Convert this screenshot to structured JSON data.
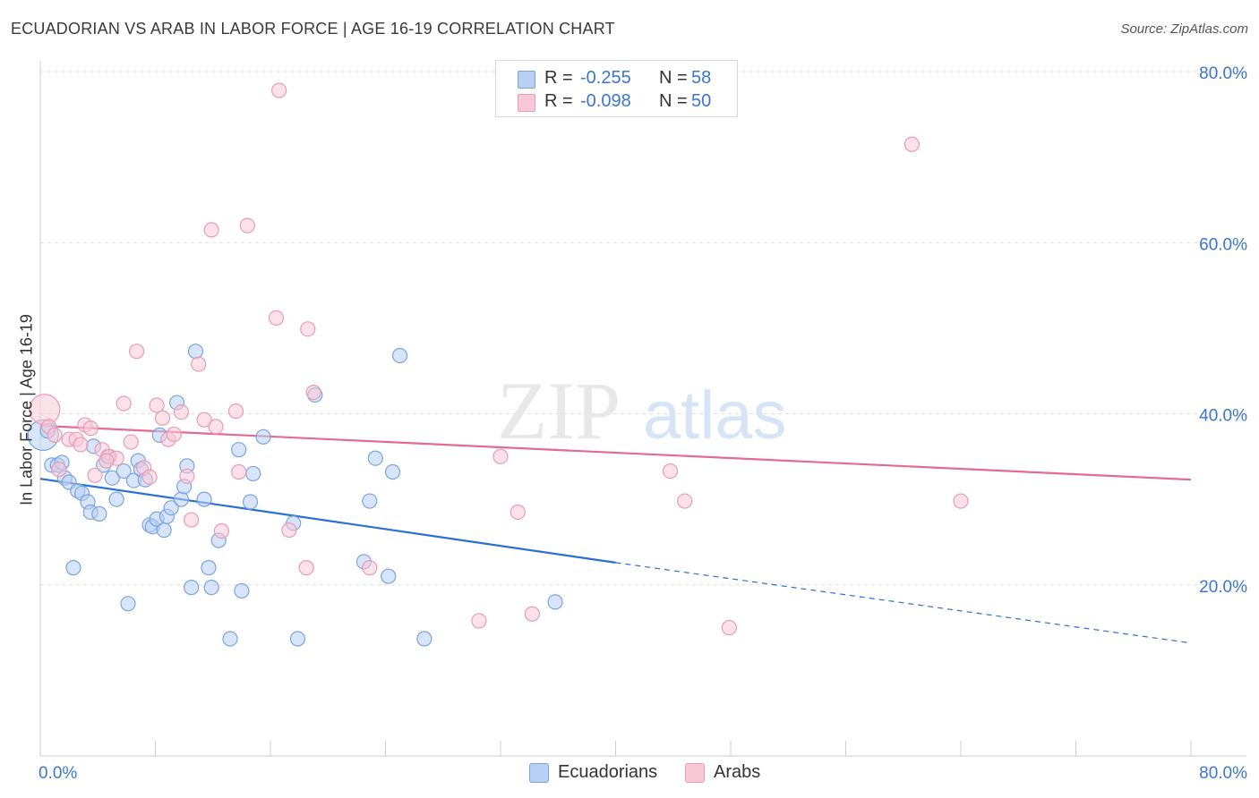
{
  "header": {
    "title": "ECUADORIAN VS ARAB IN LABOR FORCE | AGE 16-19 CORRELATION CHART",
    "source": "Source: ZipAtlas.com"
  },
  "legend": {
    "rows": [
      {
        "r_label": "R =",
        "r_value": "-0.255",
        "n_label": "N =",
        "n_value": "58"
      },
      {
        "r_label": "R =",
        "r_value": "-0.098",
        "n_label": "N =",
        "n_value": "50"
      }
    ]
  },
  "bottom_legend": [
    "Ecuadorians",
    "Arabs"
  ],
  "watermark": {
    "zip": "ZIP",
    "atlas": "atlas"
  },
  "colors": {
    "ecuadorian_fill": "#b8d0f4",
    "ecuadorian_stroke": "#7aa3df",
    "ecuadorian_line": "#2a6fd6",
    "arab_fill": "#f8c8d6",
    "arab_stroke": "#eb9ab4",
    "arab_line": "#e56a93",
    "tick_label": "#3a76d0",
    "grid": "#dcdcdc"
  },
  "chart_data": {
    "type": "scatter",
    "title": "ECUADORIAN VS ARAB IN LABOR FORCE | AGE 16-19 CORRELATION CHART",
    "xlabel": "",
    "ylabel": "In Labor Force | Age 16-19",
    "xlim": [
      0,
      80
    ],
    "ylim": [
      0,
      80
    ],
    "x_tick_labels": [
      "0.0%",
      "80.0%"
    ],
    "y_tick_labels": [
      "20.0%",
      "40.0%",
      "60.0%",
      "80.0%"
    ],
    "y_ticks": [
      20,
      40,
      60,
      80
    ],
    "grid": "horizontal dashed",
    "legend_position": "top-center",
    "series": [
      {
        "name": "Ecuadorians",
        "r": -0.255,
        "n": 58,
        "points": [
          [
            0.2,
            37.5
          ],
          [
            0.5,
            38
          ],
          [
            0.8,
            34
          ],
          [
            1.2,
            34
          ],
          [
            1.5,
            34.3
          ],
          [
            1.7,
            32.5
          ],
          [
            2,
            32
          ],
          [
            2.3,
            22
          ],
          [
            2.6,
            31
          ],
          [
            2.9,
            30.7
          ],
          [
            3.3,
            29.7
          ],
          [
            3.5,
            28.5
          ],
          [
            4.1,
            28.3
          ],
          [
            3.7,
            36.2
          ],
          [
            4.4,
            34
          ],
          [
            4.7,
            35
          ],
          [
            5,
            32.5
          ],
          [
            5.3,
            30
          ],
          [
            5.8,
            33.3
          ],
          [
            6.1,
            17.8
          ],
          [
            6.5,
            32.2
          ],
          [
            6.8,
            34.5
          ],
          [
            7,
            33.5
          ],
          [
            7.3,
            32.3
          ],
          [
            7.6,
            27
          ],
          [
            7.8,
            26.8
          ],
          [
            8.1,
            27.7
          ],
          [
            8.3,
            37.5
          ],
          [
            8.6,
            26.4
          ],
          [
            8.8,
            28
          ],
          [
            9.1,
            29
          ],
          [
            9.5,
            41.3
          ],
          [
            9.8,
            30
          ],
          [
            10,
            31.5
          ],
          [
            10.2,
            33.9
          ],
          [
            10.5,
            19.7
          ],
          [
            10.8,
            47.3
          ],
          [
            11.4,
            30
          ],
          [
            11.7,
            22
          ],
          [
            11.9,
            19.7
          ],
          [
            12.4,
            25.2
          ],
          [
            13.2,
            13.7
          ],
          [
            13.8,
            35.8
          ],
          [
            14,
            19.3
          ],
          [
            14.6,
            29.7
          ],
          [
            14.8,
            33
          ],
          [
            15.5,
            37.3
          ],
          [
            17.6,
            27.2
          ],
          [
            17.9,
            13.7
          ],
          [
            19.1,
            42.2
          ],
          [
            22.5,
            22.7
          ],
          [
            22.9,
            29.8
          ],
          [
            23.3,
            34.8
          ],
          [
            24.2,
            21
          ],
          [
            24.5,
            33.2
          ],
          [
            25,
            46.8
          ],
          [
            26.7,
            13.7
          ],
          [
            35.8,
            18
          ]
        ],
        "sizes": {
          "0.2,37.5": "large"
        },
        "trend": {
          "x": [
            0,
            40
          ],
          "y": [
            32.4,
            22.6
          ],
          "dashed_extension": {
            "x": [
              40,
              80
            ],
            "y": [
              22.6,
              13.2
            ]
          }
        }
      },
      {
        "name": "Arabs",
        "r": -0.098,
        "n": 50,
        "points": [
          [
            0.3,
            40.5
          ],
          [
            0.6,
            38.5
          ],
          [
            1,
            37.5
          ],
          [
            1.3,
            33.5
          ],
          [
            2,
            37
          ],
          [
            2.5,
            37
          ],
          [
            2.8,
            36.4
          ],
          [
            3.1,
            38.7
          ],
          [
            3.5,
            38.3
          ],
          [
            3.8,
            32.8
          ],
          [
            4.3,
            35.8
          ],
          [
            4.8,
            35
          ],
          [
            5.3,
            34.8
          ],
          [
            5.8,
            41.2
          ],
          [
            6.3,
            36.7
          ],
          [
            6.7,
            47.3
          ],
          [
            7.2,
            33.7
          ],
          [
            7.6,
            32.6
          ],
          [
            8.1,
            41
          ],
          [
            8.5,
            39.5
          ],
          [
            8.9,
            37
          ],
          [
            9.3,
            37.6
          ],
          [
            9.8,
            40.2
          ],
          [
            10.2,
            32.7
          ],
          [
            10.5,
            27.6
          ],
          [
            11,
            45.8
          ],
          [
            11.4,
            39.3
          ],
          [
            11.9,
            61.5
          ],
          [
            12.2,
            38.5
          ],
          [
            12.6,
            26.3
          ],
          [
            13.6,
            40.3
          ],
          [
            13.8,
            33.2
          ],
          [
            14.4,
            62
          ],
          [
            16.4,
            51.2
          ],
          [
            16.6,
            77.8
          ],
          [
            17.3,
            26.4
          ],
          [
            18.5,
            22
          ],
          [
            18.6,
            49.9
          ],
          [
            19,
            42.5
          ],
          [
            22.9,
            22
          ],
          [
            30.5,
            15.8
          ],
          [
            32,
            35
          ],
          [
            33.2,
            28.5
          ],
          [
            34.2,
            16.6
          ],
          [
            43.8,
            33.3
          ],
          [
            44.8,
            29.8
          ],
          [
            47.9,
            15
          ],
          [
            60.6,
            71.5
          ],
          [
            64,
            29.8
          ],
          [
            4.6,
            34.5
          ]
        ],
        "sizes": {
          "0.3,40.5": "large"
        },
        "trend": {
          "x": [
            0,
            80
          ],
          "y": [
            38.6,
            32.3
          ]
        }
      }
    ]
  }
}
